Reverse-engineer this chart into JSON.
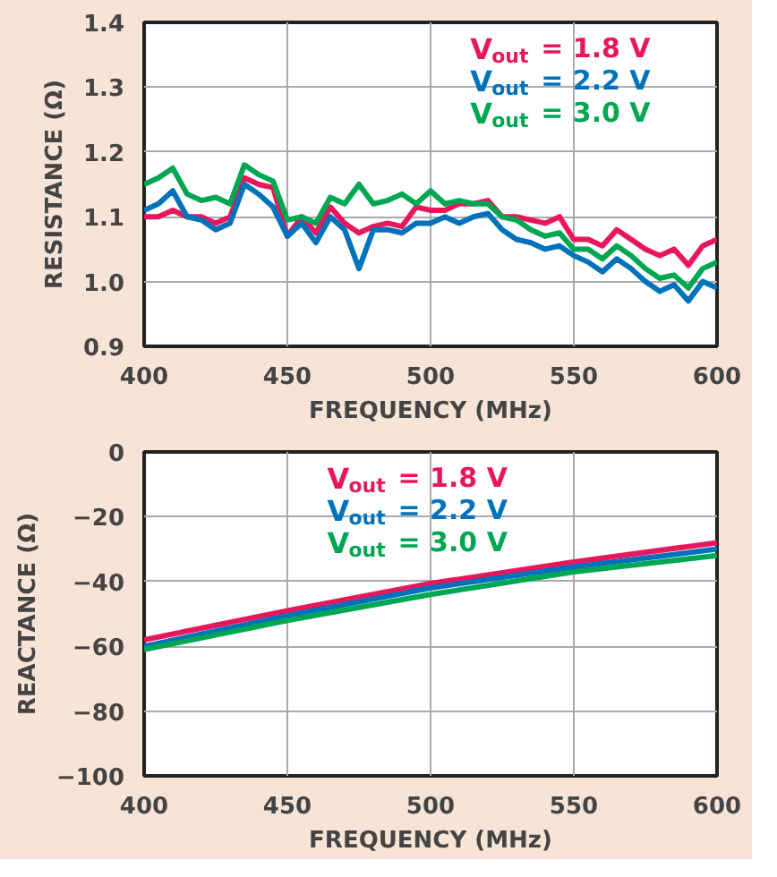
{
  "chart_data": [
    {
      "type": "line",
      "xlabel": "FREQUENCY (MHz)",
      "ylabel": "RESISTANCE (Ω)",
      "xlim": [
        400,
        600
      ],
      "ylim": [
        0.9,
        1.4
      ],
      "xticks": [
        400,
        450,
        500,
        550,
        600
      ],
      "yticks": [
        {
          "value": 0.9,
          "label": "0.9"
        },
        {
          "value": 1.0,
          "label": "1.0"
        },
        {
          "value": 1.1,
          "label": "1.1"
        },
        {
          "value": 1.2,
          "label": "1.2"
        },
        {
          "value": 1.3,
          "label": "1.3"
        },
        {
          "value": 1.4,
          "label": "1.4"
        }
      ],
      "grid": true,
      "legend": "top right",
      "line_style": "solid",
      "x": [
        400,
        405,
        410,
        415,
        420,
        425,
        430,
        435,
        440,
        445,
        450,
        455,
        460,
        465,
        470,
        475,
        480,
        485,
        490,
        495,
        500,
        505,
        510,
        515,
        520,
        525,
        530,
        535,
        540,
        545,
        550,
        555,
        560,
        565,
        570,
        575,
        580,
        585,
        590,
        595,
        600
      ],
      "series": [
        {
          "name": "V$_{out}$ = 1.8 V",
          "color": "#e8175d",
          "values": [
            1.1,
            1.1,
            1.11,
            1.1,
            1.1,
            1.09,
            1.1,
            1.16,
            1.15,
            1.145,
            1.07,
            1.1,
            1.075,
            1.115,
            1.09,
            1.075,
            1.085,
            1.09,
            1.085,
            1.115,
            1.11,
            1.11,
            1.12,
            1.12,
            1.125,
            1.1,
            1.1,
            1.095,
            1.09,
            1.1,
            1.065,
            1.065,
            1.055,
            1.08,
            1.065,
            1.05,
            1.04,
            1.05,
            1.025,
            1.055,
            1.065
          ]
        },
        {
          "name": "V$_{out}$ = 2.2 V",
          "color": "#0072bc",
          "values": [
            1.11,
            1.12,
            1.14,
            1.1,
            1.095,
            1.08,
            1.09,
            1.15,
            1.135,
            1.115,
            1.07,
            1.09,
            1.06,
            1.1,
            1.08,
            1.02,
            1.08,
            1.08,
            1.075,
            1.09,
            1.09,
            1.1,
            1.09,
            1.1,
            1.105,
            1.08,
            1.065,
            1.06,
            1.05,
            1.055,
            1.04,
            1.03,
            1.015,
            1.035,
            1.02,
            1.0,
            0.985,
            0.995,
            0.97,
            1.0,
            0.99
          ]
        },
        {
          "name": "V$_{out}$ = 3.0 V",
          "color": "#00a651",
          "values": [
            1.15,
            1.16,
            1.175,
            1.135,
            1.125,
            1.13,
            1.12,
            1.18,
            1.165,
            1.155,
            1.095,
            1.1,
            1.09,
            1.13,
            1.12,
            1.15,
            1.12,
            1.125,
            1.135,
            1.12,
            1.14,
            1.12,
            1.125,
            1.12,
            1.12,
            1.1,
            1.095,
            1.08,
            1.07,
            1.075,
            1.05,
            1.05,
            1.035,
            1.055,
            1.04,
            1.02,
            1.005,
            1.01,
            0.99,
            1.02,
            1.03
          ]
        }
      ]
    },
    {
      "type": "line",
      "xlabel": "FREQUENCY (MHz)",
      "ylabel": "REACTANCE (Ω)",
      "xlim": [
        400,
        600
      ],
      "ylim": [
        -100,
        0
      ],
      "xticks": [
        400,
        450,
        500,
        550,
        600
      ],
      "yticks": [
        {
          "value": -100,
          "label": "−100"
        },
        {
          "value": -80,
          "label": "−80"
        },
        {
          "value": -60,
          "label": "−60"
        },
        {
          "value": -40,
          "label": "−40"
        },
        {
          "value": -20,
          "label": "−20"
        },
        0
      ],
      "grid": true,
      "legend": "top",
      "line_style": "solid",
      "x": [
        400,
        450,
        500,
        550,
        600
      ],
      "series": [
        {
          "name": "V$_{out}$ = 1.8 V",
          "color": "#e8175d",
          "values": [
            -58,
            -49,
            -40.6,
            -34,
            -28
          ]
        },
        {
          "name": "V$_{out}$ = 2.2 V",
          "color": "#0072bc",
          "values": [
            -60,
            -50.5,
            -42,
            -35.5,
            -30
          ]
        },
        {
          "name": "V$_{out}$ = 3.0 V",
          "color": "#00a651",
          "values": [
            -61,
            -52,
            -44,
            -37,
            -32
          ]
        }
      ]
    }
  ]
}
